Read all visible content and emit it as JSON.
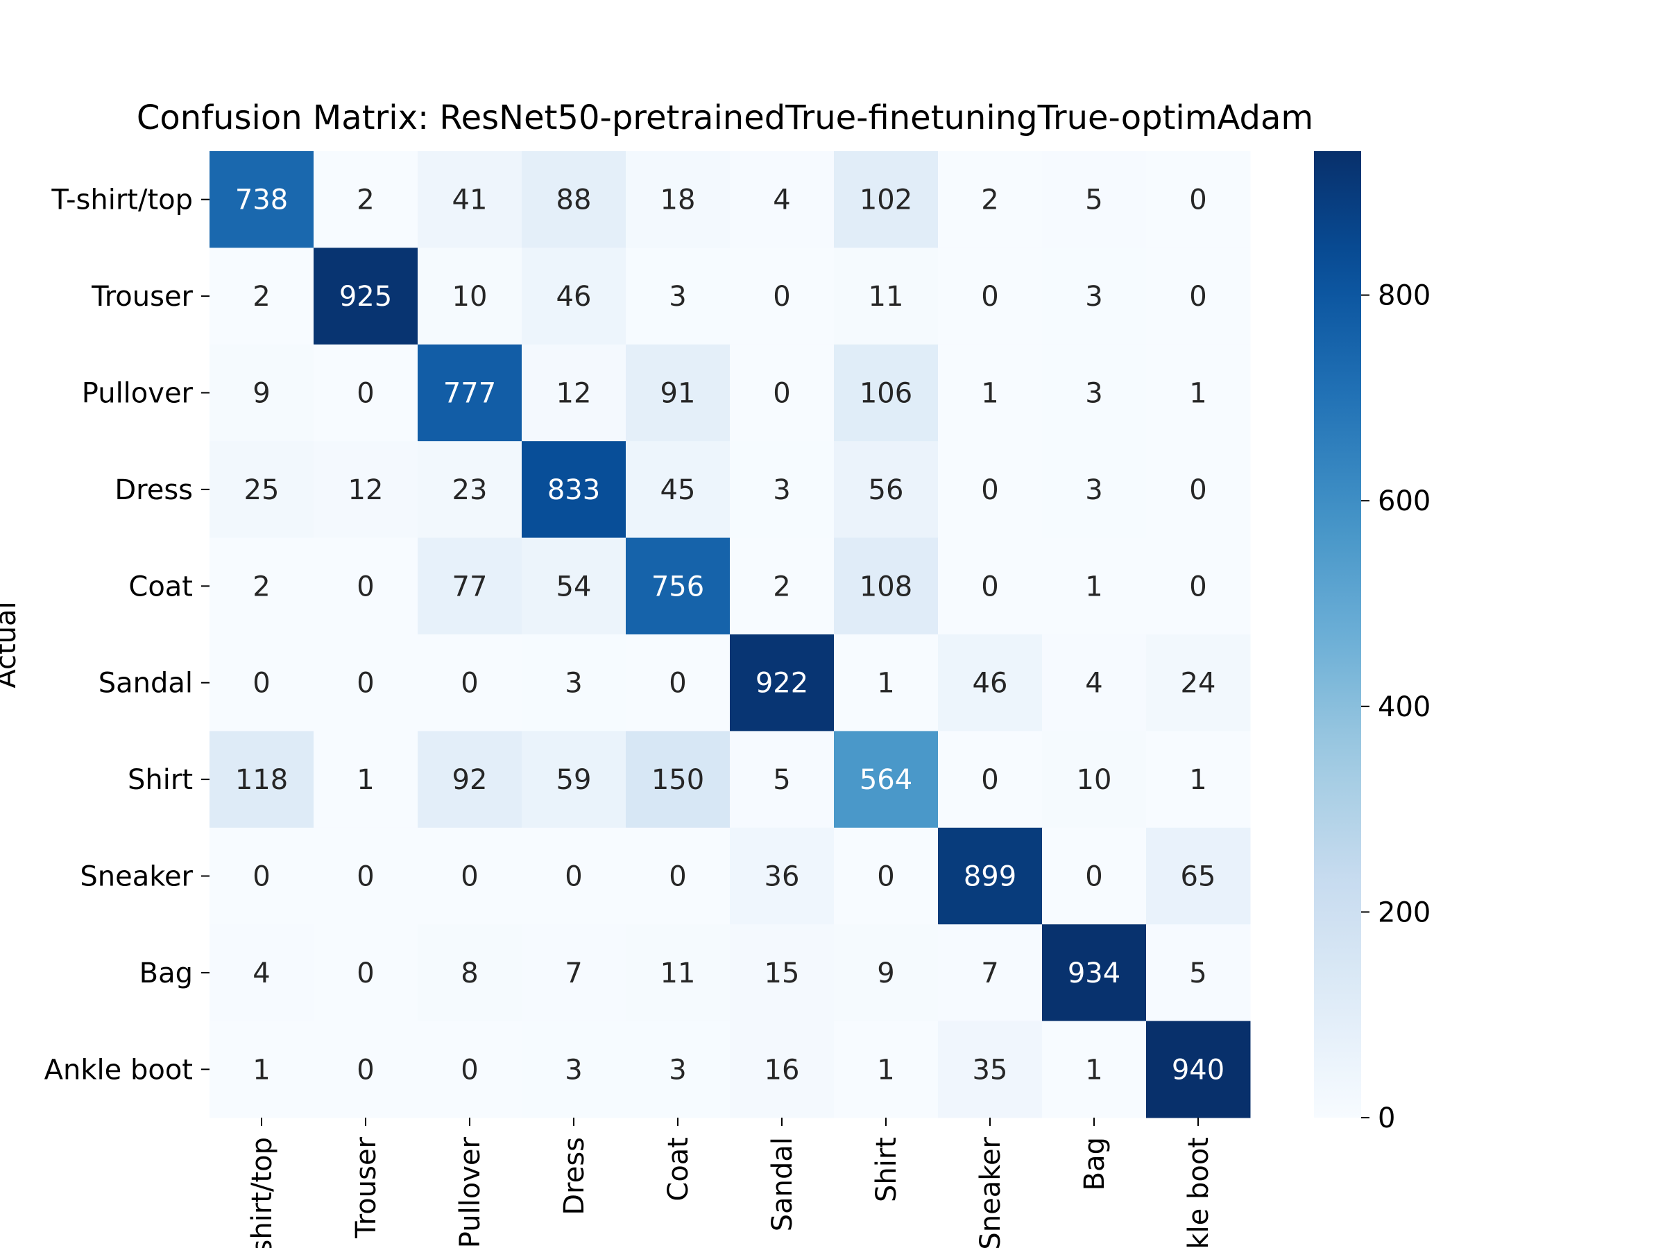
{
  "chart_data": {
    "type": "heatmap",
    "title": "Confusion Matrix: ResNet50-pretrainedTrue-finetuningTrue-optimAdam",
    "ylabel": "Actual",
    "xlabel": "",
    "row_labels": [
      "T-shirt/top",
      "Trouser",
      "Pullover",
      "Dress",
      "Coat",
      "Sandal",
      "Shirt",
      "Sneaker",
      "Bag",
      "Ankle boot"
    ],
    "col_labels": [
      "T-shirt/top",
      "Trouser",
      "Pullover",
      "Dress",
      "Coat",
      "Sandal",
      "Shirt",
      "Sneaker",
      "Bag",
      "Ankle boot"
    ],
    "values": [
      [
        738,
        2,
        41,
        88,
        18,
        4,
        102,
        2,
        5,
        0
      ],
      [
        2,
        925,
        10,
        46,
        3,
        0,
        11,
        0,
        3,
        0
      ],
      [
        9,
        0,
        777,
        12,
        91,
        0,
        106,
        1,
        3,
        1
      ],
      [
        25,
        12,
        23,
        833,
        45,
        3,
        56,
        0,
        3,
        0
      ],
      [
        2,
        0,
        77,
        54,
        756,
        2,
        108,
        0,
        1,
        0
      ],
      [
        0,
        0,
        0,
        3,
        0,
        922,
        1,
        46,
        4,
        24
      ],
      [
        118,
        1,
        92,
        59,
        150,
        5,
        564,
        0,
        10,
        1
      ],
      [
        0,
        0,
        0,
        0,
        0,
        36,
        0,
        899,
        0,
        65
      ],
      [
        4,
        0,
        8,
        7,
        11,
        15,
        9,
        7,
        934,
        5
      ],
      [
        1,
        0,
        0,
        3,
        3,
        16,
        1,
        35,
        1,
        940
      ]
    ],
    "colormap": "Blues",
    "vmin": 0,
    "vmax": 940,
    "colorbar_ticks": [
      0,
      200,
      400,
      600,
      800
    ],
    "annotation_light_color": "#ffffff",
    "annotation_dark_color": "#262626"
  }
}
